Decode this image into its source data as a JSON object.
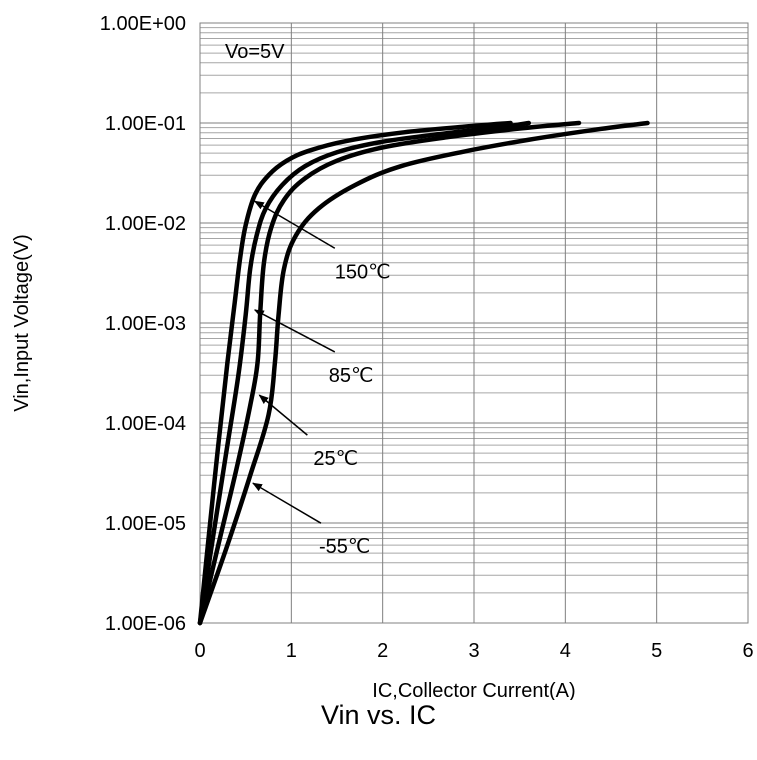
{
  "chart_data": {
    "type": "line",
    "title": "",
    "xlabel": "IC,Collector Current(A)",
    "ylabel": "Vin,Input Voltage(V)",
    "caption": "Vin vs. IC",
    "condition_label": "Vo=5V",
    "xlim": [
      0,
      6
    ],
    "ylim": [
      1e-06,
      1
    ],
    "y_scale": "log",
    "grid": true,
    "x_ticks": [
      "0",
      "1",
      "2",
      "3",
      "4",
      "5",
      "6"
    ],
    "y_ticks": [
      "1.00E-06",
      "1.00E-05",
      "1.00E-04",
      "1.00E-03",
      "1.00E-02",
      "1.00E-01",
      "1.00E+00"
    ],
    "series": [
      {
        "name": "150℃",
        "x": [
          0.0,
          0.1,
          0.2,
          0.3,
          0.38,
          0.44,
          0.5,
          0.6,
          0.75,
          0.95,
          1.2,
          1.6,
          2.2,
          2.9,
          3.4
        ],
        "y": [
          1e-06,
          8e-06,
          6e-05,
          0.0004,
          0.0016,
          0.0045,
          0.0095,
          0.019,
          0.03,
          0.042,
          0.053,
          0.066,
          0.08,
          0.092,
          0.1
        ]
      },
      {
        "name": "85℃",
        "x": [
          0.0,
          0.15,
          0.3,
          0.42,
          0.5,
          0.55,
          0.62,
          0.72,
          0.9,
          1.15,
          1.5,
          2.0,
          2.7,
          3.3,
          3.6
        ],
        "y": [
          1e-06,
          8e-06,
          6e-05,
          0.0003,
          0.0012,
          0.0035,
          0.0075,
          0.014,
          0.024,
          0.037,
          0.051,
          0.065,
          0.079,
          0.091,
          0.1
        ]
      },
      {
        "name": "25℃",
        "x": [
          0.0,
          0.2,
          0.4,
          0.55,
          0.63,
          0.66,
          0.7,
          0.78,
          0.92,
          1.15,
          1.5,
          2.0,
          2.7,
          3.5,
          4.15
        ],
        "y": [
          1e-06,
          6e-06,
          3.5e-05,
          0.00015,
          0.0004,
          0.0013,
          0.004,
          0.009,
          0.017,
          0.028,
          0.042,
          0.057,
          0.072,
          0.088,
          0.1
        ]
      },
      {
        "name": "-55℃",
        "x": [
          0.0,
          0.3,
          0.55,
          0.75,
          0.82,
          0.86,
          0.92,
          1.05,
          1.3,
          1.7,
          2.2,
          2.9,
          3.6,
          4.3,
          4.9
        ],
        "y": [
          1e-06,
          6e-06,
          3e-05,
          0.00012,
          0.0004,
          0.0012,
          0.0035,
          0.0075,
          0.014,
          0.024,
          0.037,
          0.052,
          0.068,
          0.085,
          0.1
        ]
      }
    ],
    "annotations": [
      {
        "label": "150℃",
        "arrow_to": [
          0.6,
          0.0165
        ]
      },
      {
        "label": "85℃",
        "arrow_to": [
          0.6,
          0.00135
        ]
      },
      {
        "label": "25℃",
        "arrow_to": [
          0.65,
          0.00019
        ]
      },
      {
        "label": "-55℃",
        "arrow_to": [
          0.58,
          2.5e-05
        ]
      }
    ]
  }
}
